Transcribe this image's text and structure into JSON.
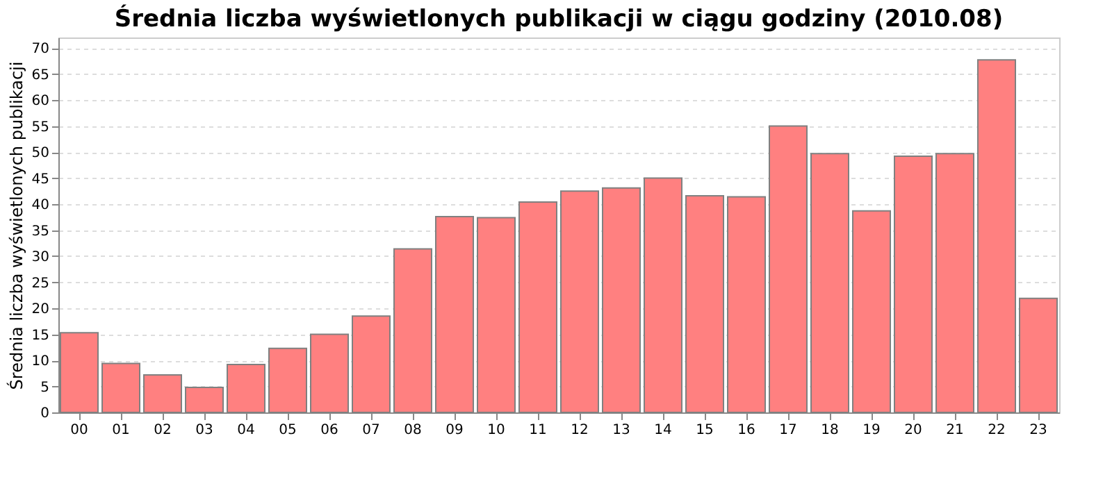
{
  "chart_data": {
    "type": "bar",
    "title": "Średnia liczba wyświetlonych publikacji w ciągu godziny (2010.08)",
    "ylabel": "Średnia liczba wyświetlonych publikacji",
    "categories": [
      "00",
      "01",
      "02",
      "03",
      "04",
      "05",
      "06",
      "07",
      "08",
      "09",
      "10",
      "11",
      "12",
      "13",
      "14",
      "15",
      "16",
      "17",
      "18",
      "19",
      "20",
      "21",
      "22",
      "23"
    ],
    "values": [
      15.3,
      9.4,
      7.2,
      4.8,
      9.2,
      12.3,
      15.0,
      18.5,
      31.4,
      37.6,
      37.4,
      40.4,
      42.5,
      43.1,
      45.0,
      41.6,
      41.4,
      55.0,
      49.7,
      38.7,
      49.2,
      49.7,
      67.7,
      21.9
    ],
    "color": "#ff8080",
    "ylim": [
      0,
      72
    ],
    "yticks": [
      0,
      5,
      10,
      15,
      20,
      25,
      30,
      35,
      40,
      45,
      50,
      55,
      60,
      65,
      70
    ],
    "grid": "y"
  }
}
